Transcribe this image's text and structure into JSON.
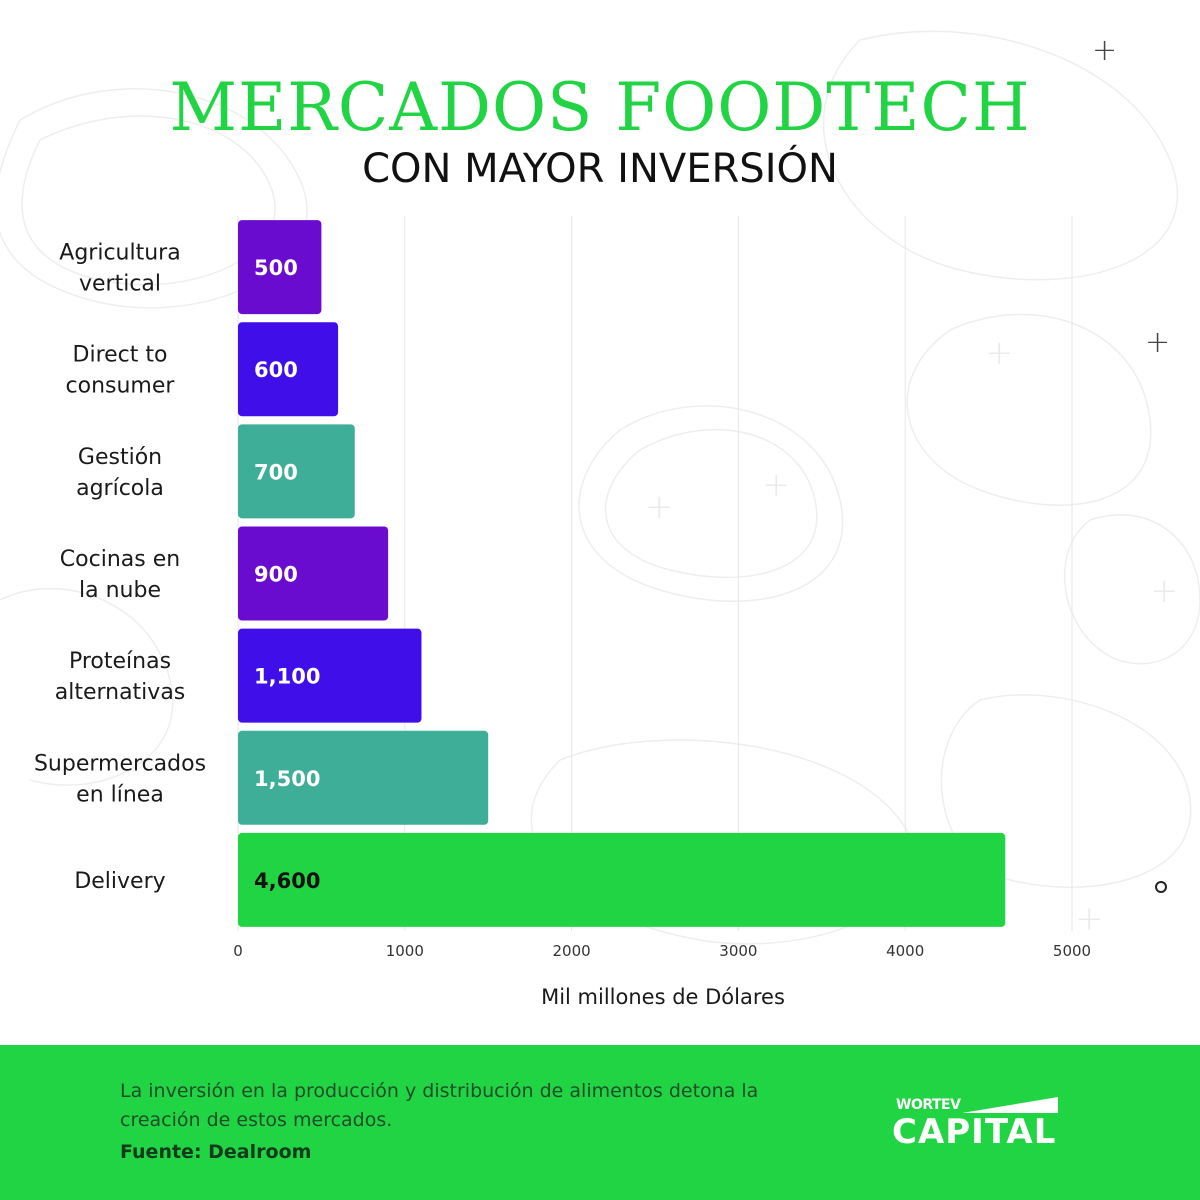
{
  "title": "MERCADOS FOODTECH",
  "subtitle": "CON MAYOR INVERSIÓN",
  "chart_data": {
    "type": "bar",
    "orientation": "horizontal",
    "categories": [
      [
        "Agricultura",
        "vertical"
      ],
      [
        "Direct to",
        "consumer"
      ],
      [
        "Gestión",
        "agrícola"
      ],
      [
        "Cocinas en",
        "la nube"
      ],
      [
        "Proteínas",
        "alternativas"
      ],
      [
        "Supermercados",
        "en línea"
      ],
      [
        "Delivery"
      ]
    ],
    "values": [
      500,
      600,
      700,
      900,
      1100,
      1500,
      4600
    ],
    "value_labels": [
      "500",
      "600",
      "700",
      "900",
      "1,100",
      "1,500",
      "4,600"
    ],
    "bar_colors": [
      "#6a0ccf",
      "#3f0ee8",
      "#3fae98",
      "#6a0ccf",
      "#3f0ee8",
      "#3fae98",
      "#21d443"
    ],
    "value_label_colors": [
      "#ffffff",
      "#ffffff",
      "#ffffff",
      "#ffffff",
      "#ffffff",
      "#ffffff",
      "#111111"
    ],
    "xlim": [
      0,
      5000
    ],
    "xticks": [
      0,
      1000,
      2000,
      3000,
      4000,
      5000
    ],
    "xlabel": "Mil millones de Dólares",
    "grid": true
  },
  "footer": {
    "text": "La inversión en la producción y distribución de alimentos detona la creación de estos mercados.",
    "source": "Fuente: Dealroom",
    "logo_top": "WORTEV",
    "logo_bottom": "CAPITAL"
  },
  "colors": {
    "accent": "#21d443",
    "purple": "#6a0ccf",
    "indigo": "#3f0ee8",
    "teal": "#3fae98"
  }
}
